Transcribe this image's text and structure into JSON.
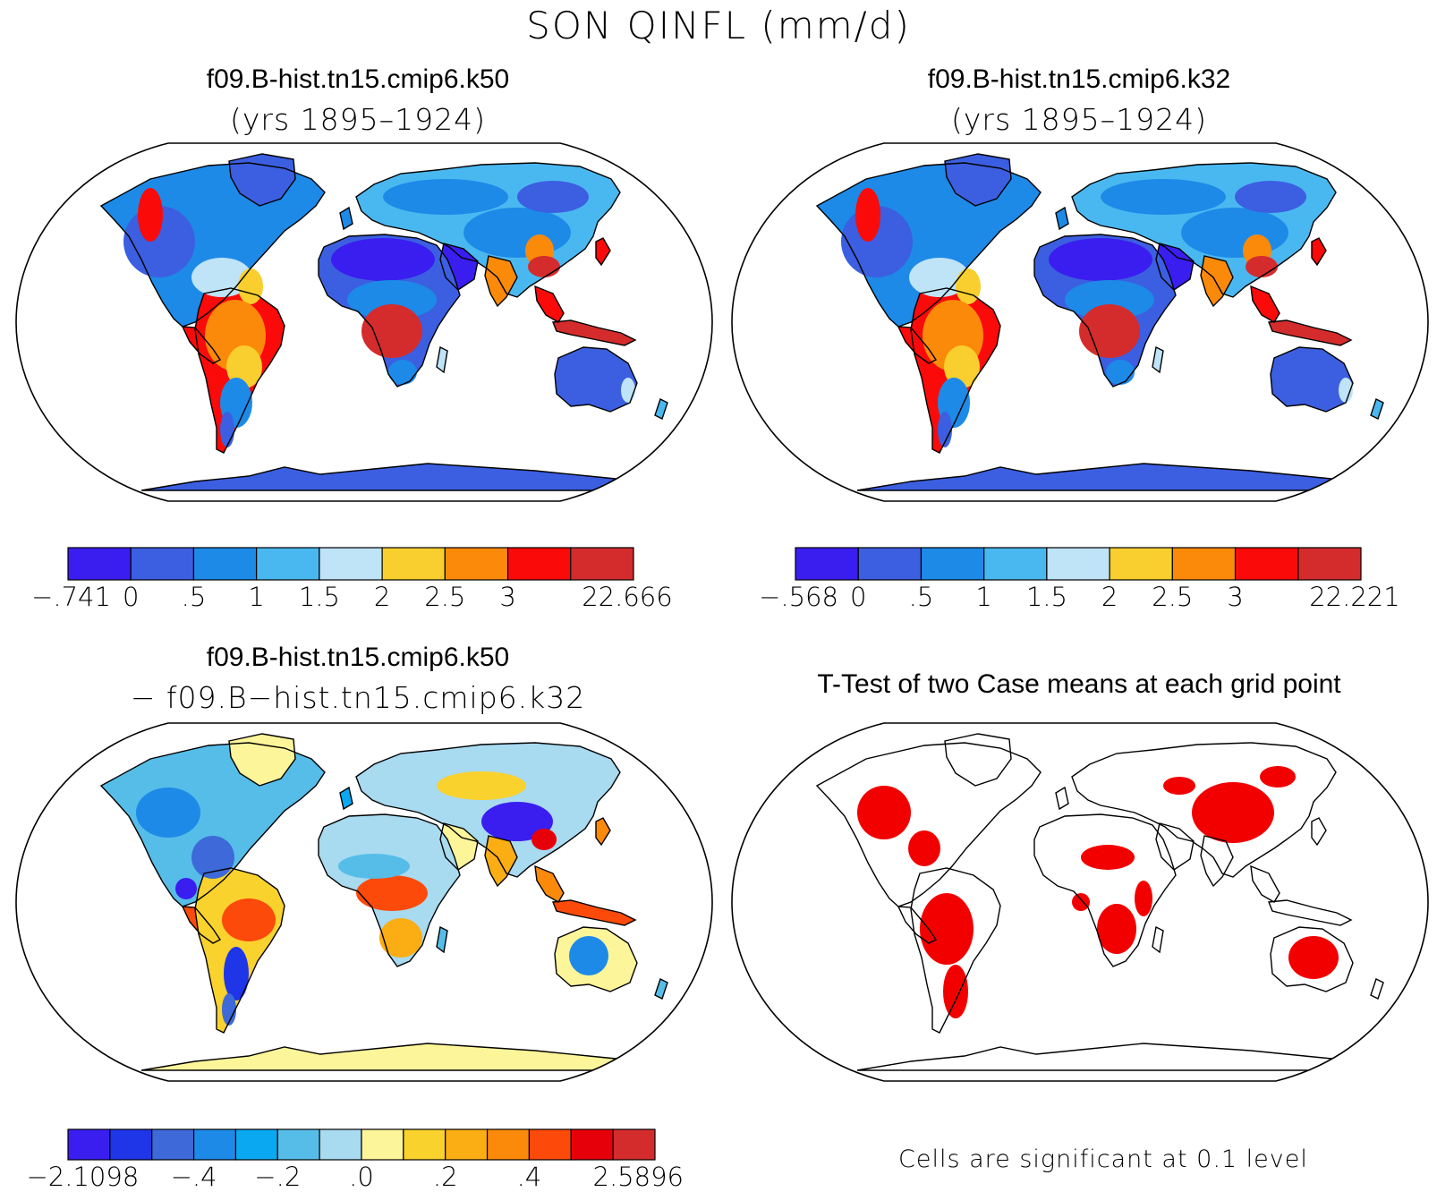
{
  "figure": {
    "title": "SON QINFL (mm/d)"
  },
  "panels": [
    {
      "id": "case1",
      "title": "f09.B-hist.tn15.cmip6.k50",
      "subtitle": "(yrs 1895–1924)",
      "colorbar": {
        "colors": [
          "#3a1ef0",
          "#3b5fe0",
          "#1d8ae8",
          "#4ab8f0",
          "#bfe3f7",
          "#f8cf2e",
          "#fb8a0a",
          "#fb0a0a",
          "#d42c2c"
        ],
        "tick_labels": [
          "−.741",
          "0",
          ".5",
          "1",
          "1.5",
          "2",
          "2.5",
          "3",
          "22.666"
        ]
      }
    },
    {
      "id": "case2",
      "title": "f09.B-hist.tn15.cmip6.k32",
      "subtitle": "(yrs 1895–1924)",
      "colorbar": {
        "colors": [
          "#3a1ef0",
          "#3b5fe0",
          "#1d8ae8",
          "#4ab8f0",
          "#bfe3f7",
          "#f8cf2e",
          "#fb8a0a",
          "#fb0a0a",
          "#d42c2c"
        ],
        "tick_labels": [
          "−.568",
          "0",
          ".5",
          "1",
          "1.5",
          "2",
          "2.5",
          "3",
          "22.221"
        ]
      }
    },
    {
      "id": "difference",
      "title": "f09.B-hist.tn15.cmip6.k50",
      "subtitle": "− f09.B−hist.tn15.cmip6.k32",
      "colorbar": {
        "colors": [
          "#3a1ef0",
          "#1f35e8",
          "#3d6ad8",
          "#1e8ae8",
          "#0aa8f0",
          "#56bde8",
          "#a8daf0",
          "#fdf59a",
          "#fad22e",
          "#fbad14",
          "#fb8a0a",
          "#fb4a0a",
          "#e6000a",
          "#d42c2c"
        ],
        "tick_labels": [
          "−2.1098",
          "−.4",
          "−.2",
          ".0",
          ".2",
          ".4",
          "2.5896"
        ]
      }
    },
    {
      "id": "ttest",
      "title": "T-Test of two Case means at each grid point",
      "footnote": "Cells are significant at 0.1 level"
    }
  ]
}
